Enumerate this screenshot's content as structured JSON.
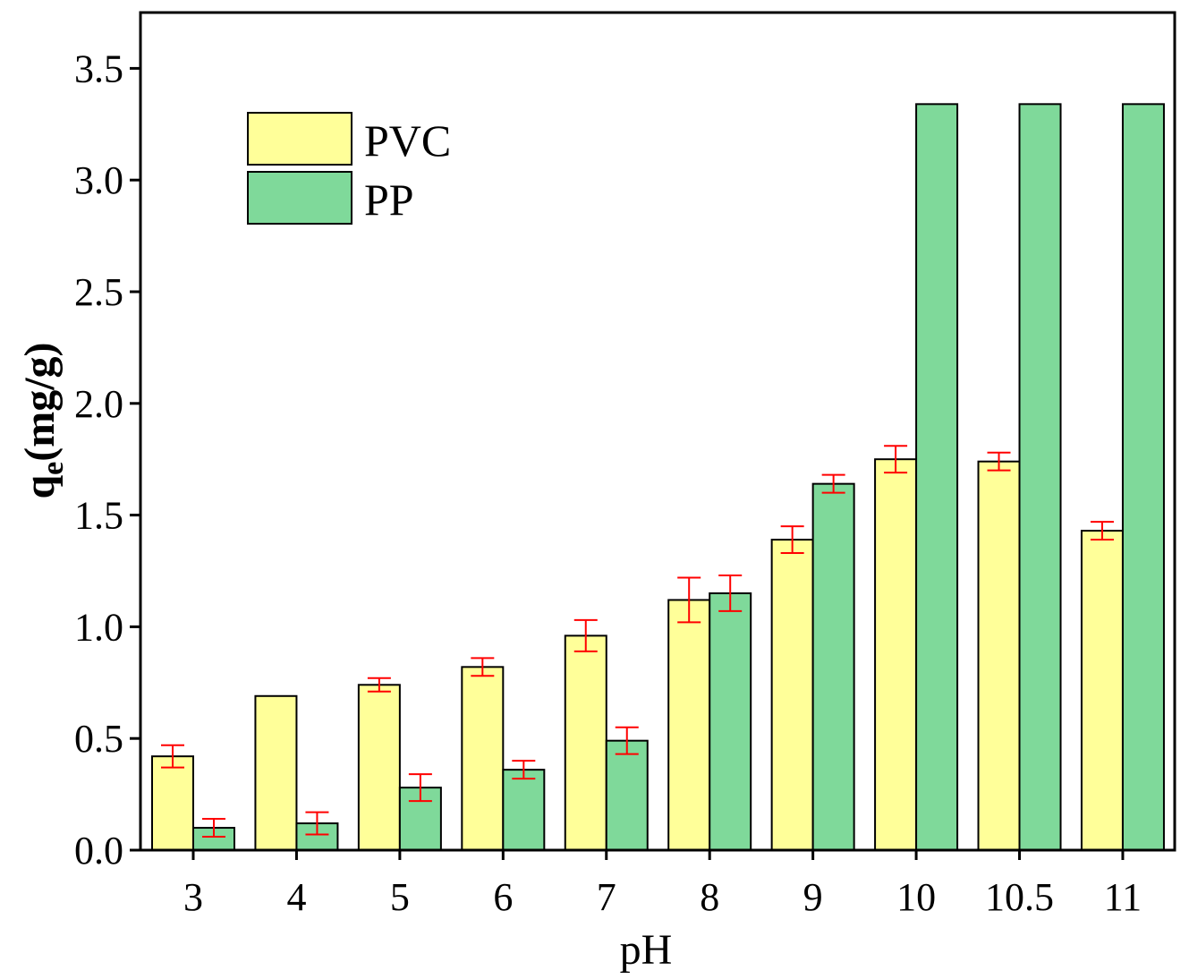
{
  "chart_data": {
    "type": "bar",
    "categories": [
      "3",
      "4",
      "5",
      "6",
      "7",
      "8",
      "9",
      "10",
      "10.5",
      "11"
    ],
    "series": [
      {
        "name": "PVC",
        "key": "pvc",
        "color": "#FFFF99",
        "values": [
          0.42,
          0.69,
          0.74,
          0.82,
          0.96,
          1.12,
          1.39,
          1.75,
          1.74,
          1.43
        ],
        "errors": [
          0.05,
          null,
          0.03,
          0.04,
          0.07,
          0.1,
          0.06,
          0.06,
          0.04,
          0.04
        ]
      },
      {
        "name": "PP",
        "key": "pp",
        "color": "#7FD99A",
        "values": [
          0.1,
          0.12,
          0.28,
          0.36,
          0.49,
          1.15,
          1.64,
          3.34,
          3.34,
          3.34
        ],
        "errors": [
          0.04,
          0.05,
          0.06,
          0.04,
          0.06,
          0.08,
          0.04,
          null,
          null,
          null
        ]
      }
    ],
    "error_color": "#FF0000",
    "xlabel": "pH",
    "ylabel": {
      "main": "q",
      "sub": "e",
      "unit": "(mg/g)"
    },
    "ylim": [
      0,
      3.75
    ],
    "yticks": [
      0,
      0.5,
      1.0,
      1.5,
      2.0,
      2.5,
      3.0,
      3.5
    ],
    "ytick_labels": [
      "0.0",
      "0.5",
      "1.0",
      "1.5",
      "2.0",
      "2.5",
      "3.0",
      "3.5"
    ],
    "legend": "top-left",
    "grid": false
  }
}
